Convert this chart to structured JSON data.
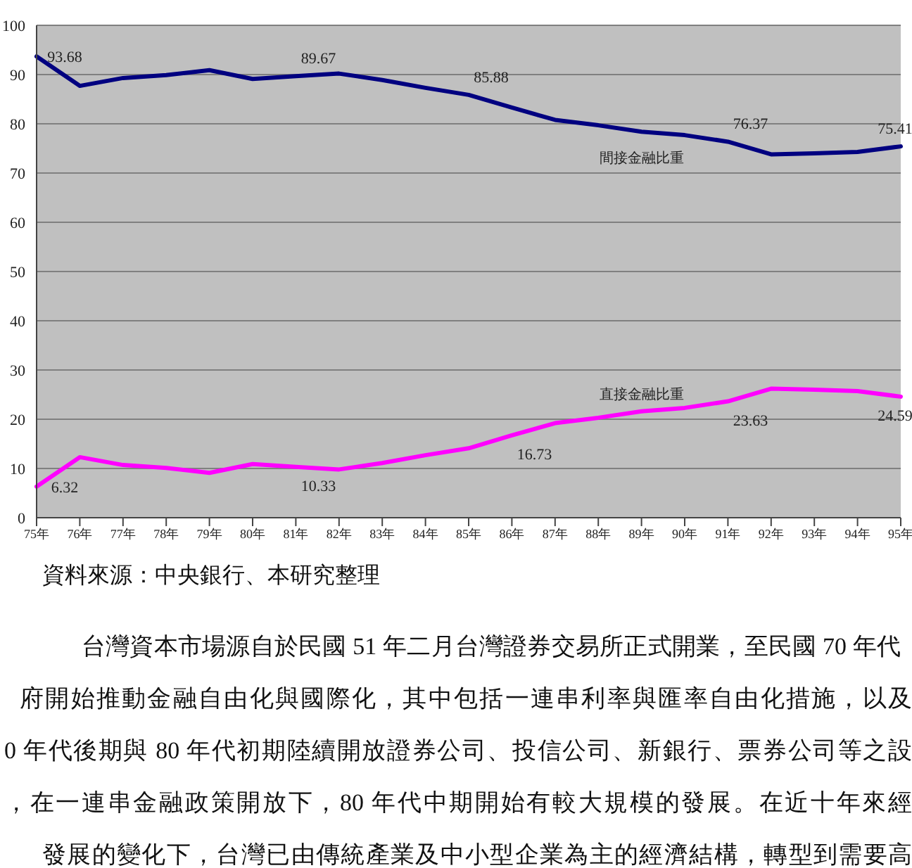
{
  "chart_data": {
    "type": "line",
    "categories": [
      "75年",
      "76年",
      "77年",
      "78年",
      "79年",
      "80年",
      "81年",
      "82年",
      "83年",
      "84年",
      "85年",
      "86年",
      "87年",
      "88年",
      "89年",
      "90年",
      "91年",
      "92年",
      "93年",
      "94年",
      "95年"
    ],
    "series": [
      {
        "name": "間接金融比重",
        "color": "#000080",
        "values": [
          93.68,
          87.7,
          89.3,
          89.9,
          90.9,
          89.1,
          89.67,
          90.2,
          88.9,
          87.3,
          85.88,
          83.3,
          80.8,
          79.7,
          78.4,
          77.7,
          76.37,
          73.8,
          74.0,
          74.3,
          75.41
        ],
        "value_labels": [
          "93.68",
          null,
          null,
          null,
          null,
          null,
          "89.67",
          null,
          null,
          null,
          "85.88",
          null,
          null,
          null,
          null,
          null,
          "76.37",
          null,
          null,
          null,
          "75.41"
        ]
      },
      {
        "name": "直接金融比重",
        "color": "#ff00ff",
        "values": [
          6.32,
          12.3,
          10.7,
          10.1,
          9.1,
          10.9,
          10.33,
          9.8,
          11.1,
          12.7,
          14.1,
          16.73,
          19.2,
          20.3,
          21.6,
          22.3,
          23.63,
          26.2,
          26.0,
          25.7,
          24.59
        ],
        "value_labels": [
          "6.32",
          null,
          null,
          null,
          null,
          null,
          "10.33",
          null,
          null,
          null,
          null,
          "16.73",
          null,
          null,
          null,
          null,
          "23.63",
          null,
          null,
          null,
          "24.59"
        ]
      }
    ],
    "ylim": [
      0,
      100
    ],
    "yticks": [
      0,
      10,
      20,
      30,
      40,
      50,
      60,
      70,
      80,
      90,
      100
    ],
    "grid": "y",
    "legend": false,
    "marker": "none",
    "annotations": [
      "資料來源：中央銀行、本研究整理",
      "台灣資本市場源自於民國 51 年二月台灣證券交易所正式開業，至民國 70 年代",
      "府開始推動金融自由化與國際化，其中包括一連串利率與匯率自由化措施，以及",
      "0 年代後期與 80 年代初期陸續開放證券公司、投信公司、新銀行、票券公司等之設",
      "，在一連串金融政策開放下，80 年代中期開始有較大規模的發展。在近十年來經",
      "發展的變化下，台灣已由傳統產業及中小型企業為主的經濟結構，轉型到需要高"
    ]
  }
}
